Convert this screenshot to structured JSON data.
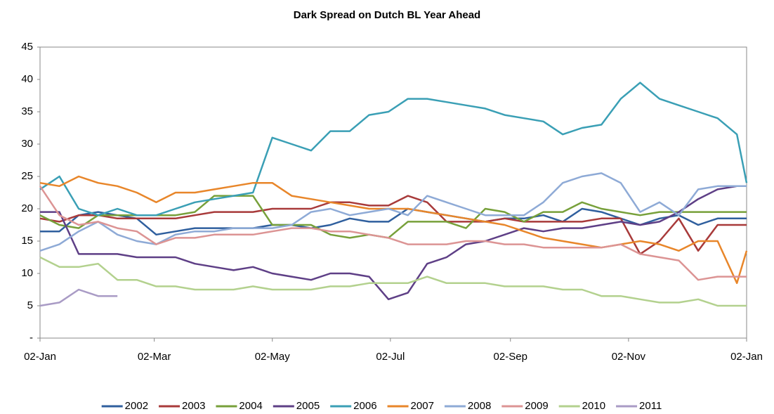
{
  "chart_data": {
    "type": "line",
    "title": "Dark Spread on Dutch BL Year Ahead",
    "x": [
      0,
      10,
      20,
      30,
      40,
      50,
      60,
      70,
      80,
      90,
      100,
      110,
      120,
      130,
      140,
      150,
      160,
      170,
      180,
      190,
      200,
      210,
      220,
      230,
      240,
      250,
      260,
      270,
      280,
      290,
      300,
      310,
      320,
      330,
      340,
      350,
      360,
      365
    ],
    "xlim": [
      0,
      365
    ],
    "xticks": [
      {
        "value": 0,
        "label": "02-Jan"
      },
      {
        "value": 59,
        "label": "02-Mar"
      },
      {
        "value": 120,
        "label": "02-May"
      },
      {
        "value": 181,
        "label": "02-Jul"
      },
      {
        "value": 243,
        "label": "02-Sep"
      },
      {
        "value": 304,
        "label": "02-Nov"
      },
      {
        "value": 365,
        "label": "02-Jan"
      }
    ],
    "ylim": [
      0,
      45
    ],
    "yticks": [
      {
        "value": 0,
        "label": "-"
      },
      5,
      10,
      15,
      20,
      25,
      30,
      35,
      40,
      45
    ],
    "grid": false,
    "legend": "bottom",
    "series": [
      {
        "name": "2002",
        "color": "#2f5f9e",
        "values": [
          16.5,
          16.5,
          19,
          19.5,
          19,
          18.5,
          16,
          16.5,
          17,
          17,
          17,
          17,
          17.5,
          17.5,
          17,
          17.5,
          18.5,
          18,
          18,
          20,
          19.5,
          19,
          18.5,
          18,
          18.5,
          18.5,
          19,
          18,
          20,
          19.5,
          18.5,
          17.5,
          18.5,
          19,
          17.5,
          18.5,
          18.5,
          18.5
        ]
      },
      {
        "name": "2003",
        "color": "#a83a3a",
        "values": [
          18.5,
          18,
          19,
          19,
          18.5,
          18.5,
          18.5,
          18.5,
          19,
          19.5,
          19.5,
          19.5,
          20,
          20,
          20,
          21,
          21,
          20.5,
          20.5,
          22,
          21,
          18,
          18,
          18,
          18.5,
          18,
          18,
          18,
          18,
          18.5,
          18.5,
          13,
          15,
          18.5,
          13.5,
          17.5,
          17.5,
          17.5
        ]
      },
      {
        "name": "2004",
        "color": "#77a03a",
        "values": [
          19,
          17.5,
          17,
          19,
          19,
          19,
          19,
          19,
          19.5,
          22,
          22,
          22,
          17.5,
          17.5,
          17.5,
          16,
          15.5,
          16,
          15.5,
          18,
          18,
          18,
          17,
          20,
          19.5,
          18,
          19.5,
          19.5,
          21,
          20,
          19.5,
          19,
          19.5,
          19.5,
          19.5,
          19.5,
          19.5,
          19.5
        ]
      },
      {
        "name": "2005",
        "color": "#5e3f86",
        "values": [
          19.5,
          19.5,
          13,
          13,
          13,
          12.5,
          12.5,
          12.5,
          11.5,
          11,
          10.5,
          11,
          10,
          9.5,
          9,
          10,
          10,
          9.5,
          6,
          7,
          11.5,
          12.5,
          14.5,
          15,
          16,
          17,
          16.5,
          17,
          17,
          17.5,
          18,
          17.5,
          18,
          19.5,
          21.5,
          23,
          23.5,
          23.5
        ]
      },
      {
        "name": "2006",
        "color": "#3a9fb5",
        "values": [
          23,
          25,
          20,
          19,
          20,
          19,
          19,
          20,
          21,
          21.5,
          22,
          22.5,
          31,
          30,
          29,
          32,
          32,
          34.5,
          35,
          37,
          37,
          36.5,
          36,
          35.5,
          34.5,
          34,
          33.5,
          31.5,
          32.5,
          33,
          37,
          39.5,
          37,
          36,
          35,
          34,
          31.5,
          24
        ]
      },
      {
        "name": "2007",
        "color": "#e8862a",
        "values": [
          24,
          23.5,
          25,
          24,
          23.5,
          22.5,
          21,
          22.5,
          22.5,
          23,
          23.5,
          24,
          24,
          22,
          21.5,
          21,
          20.5,
          20,
          20,
          20,
          19.5,
          19,
          18.5,
          18,
          17.5,
          16.5,
          15.5,
          15,
          14.5,
          14,
          14.5,
          15,
          14.5,
          13.5,
          15,
          15,
          8.5,
          13.5
        ]
      },
      {
        "name": "2008",
        "color": "#8eaad6",
        "values": [
          13.5,
          14.5,
          16.5,
          18,
          16,
          15,
          14.5,
          16,
          16.5,
          16.5,
          17,
          17,
          17,
          17.5,
          19.5,
          20,
          19,
          19.5,
          20,
          19,
          22,
          21,
          20,
          19,
          19,
          19,
          21,
          24,
          25,
          25.5,
          24,
          19.5,
          21,
          19,
          23,
          23.5,
          23.5,
          23.5
        ]
      },
      {
        "name": "2009",
        "color": "#dc9494",
        "values": [
          23.5,
          19,
          17.5,
          18,
          17,
          16.5,
          14.5,
          15.5,
          15.5,
          16,
          16,
          16,
          16.5,
          17,
          17,
          16.5,
          16.5,
          16,
          15.5,
          14.5,
          14.5,
          14.5,
          15,
          15,
          14.5,
          14.5,
          14,
          14,
          14,
          14,
          14.5,
          13,
          12.5,
          12,
          9,
          9.5,
          9.5,
          9.5
        ]
      },
      {
        "name": "2010",
        "color": "#b3d18e",
        "values": [
          12.5,
          11,
          11,
          11.5,
          9,
          9,
          8,
          8,
          7.5,
          7.5,
          7.5,
          8,
          7.5,
          7.5,
          7.5,
          8,
          8,
          8.5,
          8.5,
          8.5,
          9.5,
          8.5,
          8.5,
          8.5,
          8,
          8,
          8,
          7.5,
          7.5,
          6.5,
          6.5,
          6,
          5.5,
          5.5,
          6,
          5,
          5,
          5
        ]
      },
      {
        "name": "2011",
        "color": "#a99bc5",
        "values": [
          5,
          5.5,
          7.5,
          6.5,
          6.5,
          null,
          null,
          null,
          null,
          null,
          null,
          null,
          null,
          null,
          null,
          null,
          null,
          null,
          null,
          null,
          null,
          null,
          null,
          null,
          null,
          null,
          null,
          null,
          null,
          null,
          null,
          null,
          null,
          null,
          null,
          null,
          null,
          null
        ]
      }
    ]
  }
}
